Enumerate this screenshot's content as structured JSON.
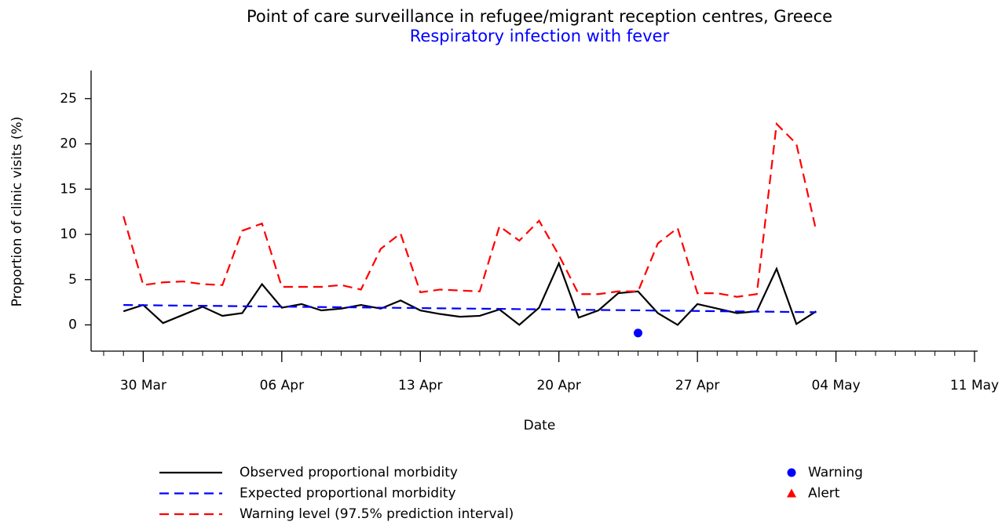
{
  "chart_data": {
    "type": "line",
    "title": "Point of care surveillance in refugee/migrant reception centres, Greece",
    "subtitle": "Respiratory infection with fever",
    "x_label": "Date",
    "y_label": "Proportion of clinic visits (%)",
    "x": [
      "29 Mar",
      "30 Mar",
      "31 Mar",
      "01 Apr",
      "02 Apr",
      "03 Apr",
      "04 Apr",
      "05 Apr",
      "06 Apr",
      "07 Apr",
      "08 Apr",
      "09 Apr",
      "10 Apr",
      "11 Apr",
      "12 Apr",
      "13 Apr",
      "14 Apr",
      "15 Apr",
      "16 Apr",
      "17 Apr",
      "18 Apr",
      "19 Apr",
      "20 Apr",
      "21 Apr",
      "22 Apr",
      "23 Apr",
      "24 Apr",
      "25 Apr",
      "26 Apr",
      "27 Apr",
      "28 Apr",
      "29 Apr",
      "30 Apr",
      "01 May",
      "02 May",
      "03 May"
    ],
    "xlim": [
      "28 Mar",
      "11 May"
    ],
    "xticks": [
      "30 Mar",
      "06 Apr",
      "13 Apr",
      "20 Apr",
      "27 Apr",
      "04 May",
      "11 May"
    ],
    "ylim": [
      -2.9,
      28.1
    ],
    "yticks": [
      0,
      5,
      10,
      15,
      20,
      25
    ],
    "series": [
      {
        "name": "Observed proportional morbidity",
        "color": "#000000",
        "style": "solid",
        "values": [
          1.5,
          2.2,
          0.2,
          1.1,
          2.0,
          1.0,
          1.3,
          4.5,
          1.9,
          2.3,
          1.6,
          1.8,
          2.2,
          1.8,
          2.7,
          1.6,
          1.2,
          0.9,
          1.0,
          1.7,
          0.0,
          1.9,
          6.8,
          0.8,
          1.6,
          3.5,
          3.7,
          1.3,
          0.0,
          2.3,
          1.8,
          1.3,
          1.5,
          6.2,
          0.1,
          1.5
        ]
      },
      {
        "name": "Expected proportional morbidity",
        "color": "#0000ff",
        "style": "dashed",
        "values": [
          2.2,
          2.18,
          2.15,
          2.13,
          2.11,
          2.09,
          2.06,
          2.04,
          2.02,
          1.99,
          1.97,
          1.95,
          1.93,
          1.9,
          1.88,
          1.86,
          1.83,
          1.81,
          1.79,
          1.77,
          1.74,
          1.72,
          1.7,
          1.67,
          1.65,
          1.63,
          1.61,
          1.58,
          1.56,
          1.54,
          1.51,
          1.49,
          1.47,
          1.45,
          1.42,
          1.4
        ]
      },
      {
        "name": "Warning level (97.5% prediction interval)",
        "color": "#ff0000",
        "style": "dashed",
        "values": [
          12.0,
          4.4,
          4.7,
          4.8,
          4.5,
          4.4,
          10.4,
          11.2,
          4.2,
          4.2,
          4.2,
          4.4,
          3.9,
          8.4,
          10.1,
          3.6,
          3.9,
          3.8,
          3.7,
          10.9,
          9.3,
          11.5,
          7.7,
          3.4,
          3.4,
          3.7,
          3.7,
          9.0,
          10.7,
          3.5,
          3.5,
          3.1,
          3.4,
          22.2,
          20.0,
          10.4
        ]
      },
      {
        "name": "Warning",
        "type": "scatter",
        "marker": "circle",
        "color": "#0000ff",
        "x": [
          "24 Apr"
        ],
        "values": [
          -0.9
        ]
      },
      {
        "name": "Alert",
        "type": "scatter",
        "marker": "triangle",
        "color": "#ff0000",
        "x": [],
        "values": []
      }
    ]
  }
}
